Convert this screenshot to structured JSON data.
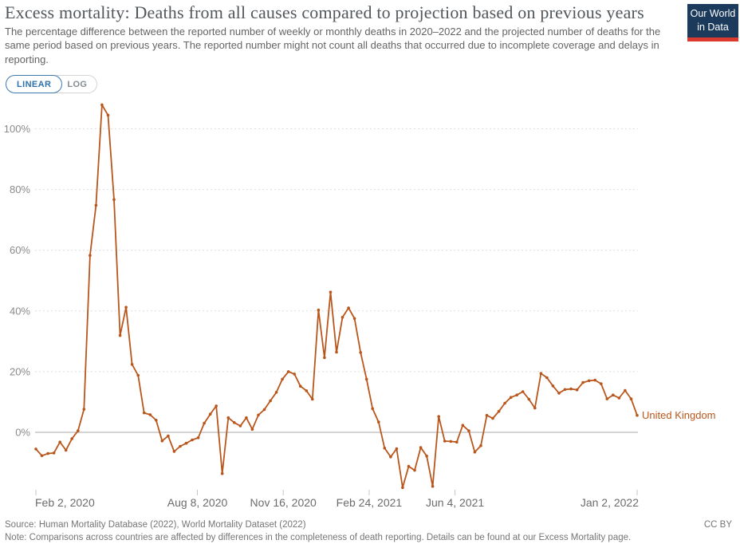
{
  "header": {
    "title": "Excess mortality: Deaths from all causes compared to projection based on previous years",
    "subtitle": "The percentage difference between the reported number of weekly or monthly deaths in 2020–2022 and the projected number of deaths for the same period based on previous years. The reported number might not count all deaths that occurred due to incomplete coverage and delays in reporting."
  },
  "logo": {
    "line1": "Our World",
    "line2": "in Data"
  },
  "toggle": {
    "options": [
      "LINEAR",
      "LOG"
    ],
    "selected": "LINEAR"
  },
  "chart_data": {
    "type": "line",
    "title": "Excess mortality P-scores, United Kingdom, weekly",
    "grid": true,
    "legend_position": "end-of-line label",
    "y_axis": {
      "unit": "%",
      "ylim": [
        -20,
        112
      ],
      "tick_values": [
        0,
        20,
        40,
        60,
        80,
        100
      ],
      "tick_labels": [
        "0%",
        "20%",
        "40%",
        "60%",
        "80%",
        "100%"
      ]
    },
    "x_axis": {
      "start_date": "2020-02-02",
      "end_date": "2022-01-02",
      "frequency": "weekly",
      "ticks": [
        {
          "label": "Feb 2, 2020",
          "week": 0
        },
        {
          "label": "Aug 8, 2020",
          "week": 26.86
        },
        {
          "label": "Nov 16, 2020",
          "week": 41.14
        },
        {
          "label": "Feb 24, 2021",
          "week": 55.43
        },
        {
          "label": "Jun 4, 2021",
          "week": 69.71
        },
        {
          "label": "Jan 2, 2022",
          "week": 100
        }
      ]
    },
    "series": [
      {
        "name": "United Kingdom",
        "color": "#b9561c",
        "values": [
          -5.5,
          -7.7,
          -7.0,
          -6.8,
          -3.2,
          -5.9,
          -2.1,
          0.5,
          7.6,
          58.3,
          74.8,
          107.9,
          104.5,
          76.7,
          31.9,
          41.2,
          22.4,
          18.8,
          6.4,
          5.8,
          4.0,
          -2.8,
          -1.2,
          -6.3,
          -4.6,
          -3.6,
          -2.5,
          -1.8,
          3.0,
          6.0,
          8.7,
          -13.6,
          4.8,
          3.2,
          2.1,
          4.8,
          1.0,
          5.7,
          7.5,
          10.4,
          13.2,
          17.5,
          20.0,
          19.2,
          15.2,
          13.7,
          10.9,
          40.3,
          24.6,
          46.2,
          26.4,
          37.9,
          41.0,
          37.5,
          26.3,
          17.5,
          7.8,
          3.4,
          -5.2,
          -8.1,
          -5.4,
          -18.2,
          -11.2,
          -12.5,
          -5.0,
          -7.8,
          -17.8,
          5.2,
          -2.9,
          -3.0,
          -3.2,
          2.3,
          0.5,
          -6.5,
          -4.4,
          5.6,
          4.6,
          6.9,
          9.6,
          11.5,
          12.3,
          13.4,
          10.9,
          8.0,
          19.4,
          18.0,
          15.3,
          12.9,
          14.1,
          14.3,
          14.0,
          16.4,
          17.0,
          17.2,
          16.0,
          11.0,
          12.3,
          11.3,
          13.8,
          11.0,
          5.6
        ]
      }
    ]
  },
  "footer": {
    "source": "Source: Human Mortality Database (2022), World Mortality Dataset (2022)",
    "note": "Note: Comparisons across countries are affected by differences in the completeness of death reporting. Details can be found at our Excess Mortality page.",
    "license": "CC BY"
  },
  "colors": {
    "series_line": "#b9561c",
    "gridline": "#dedede",
    "zero_line": "#a8a8a8",
    "y_tick_text": "#8a8a8a",
    "x_tick_text": "#6b6b6b",
    "toggle_active": "#2f71ab",
    "logo_bg": "#1b3a5c",
    "logo_bar": "#dc3a2e"
  }
}
